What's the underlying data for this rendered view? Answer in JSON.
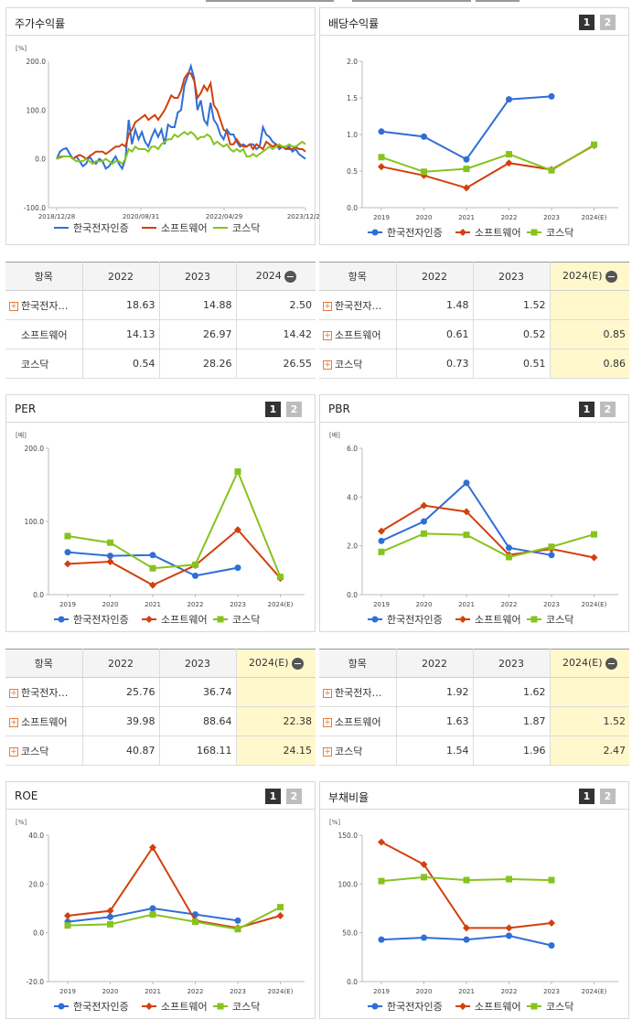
{
  "colors": {
    "company": "#2f6fd6",
    "software": "#d2400e",
    "kosdaq": "#86c31f"
  },
  "legend": [
    "한국전자인증",
    "소프트웨어",
    "코스닥"
  ],
  "panels": {
    "stock": {
      "title": "주가수익률",
      "unit": "[%]"
    },
    "dividend": {
      "title": "배당수익률",
      "btn1": "1",
      "btn2": "2"
    },
    "per": {
      "title": "PER",
      "unit": "[배]",
      "btn1": "1",
      "btn2": "2"
    },
    "pbr": {
      "title": "PBR",
      "unit": "[배]",
      "btn1": "1",
      "btn2": "2"
    },
    "roe": {
      "title": "ROE",
      "unit": "[%]",
      "btn1": "1",
      "btn2": "2"
    },
    "debt": {
      "title": "부채비율",
      "unit": "[%]",
      "btn1": "1",
      "btn2": "2"
    }
  },
  "tables": {
    "dividend_left": {
      "headers": [
        "항목",
        "2022",
        "2023",
        "2024"
      ],
      "rows": [
        {
          "name": "한국전자…",
          "plus": true,
          "v": [
            "18.63",
            "14.88",
            "2.50"
          ]
        },
        {
          "name": "소프트웨어",
          "plus": false,
          "v": [
            "14.13",
            "26.97",
            "14.42"
          ]
        },
        {
          "name": "코스닥",
          "plus": false,
          "v": [
            "0.54",
            "28.26",
            "26.55"
          ]
        }
      ]
    },
    "dividend_right": {
      "headers": [
        "항목",
        "2022",
        "2023",
        "2024(E)"
      ],
      "rows": [
        {
          "name": "한국전자…",
          "plus": true,
          "v": [
            "1.48",
            "1.52",
            ""
          ]
        },
        {
          "name": "소프트웨어",
          "plus": true,
          "v": [
            "0.61",
            "0.52",
            "0.85"
          ]
        },
        {
          "name": "코스닥",
          "plus": true,
          "v": [
            "0.73",
            "0.51",
            "0.86"
          ]
        }
      ]
    },
    "per": {
      "headers": [
        "항목",
        "2022",
        "2023",
        "2024(E)"
      ],
      "rows": [
        {
          "name": "한국전자…",
          "plus": true,
          "v": [
            "25.76",
            "36.74",
            ""
          ]
        },
        {
          "name": "소프트웨어",
          "plus": true,
          "v": [
            "39.98",
            "88.64",
            "22.38"
          ]
        },
        {
          "name": "코스닥",
          "plus": true,
          "v": [
            "40.87",
            "168.11",
            "24.15"
          ]
        }
      ]
    },
    "pbr": {
      "headers": [
        "항목",
        "2022",
        "2023",
        "2024(E)"
      ],
      "rows": [
        {
          "name": "한국전자…",
          "plus": true,
          "v": [
            "1.92",
            "1.62",
            ""
          ]
        },
        {
          "name": "소프트웨어",
          "plus": true,
          "v": [
            "1.63",
            "1.87",
            "1.52"
          ]
        },
        {
          "name": "코스닥",
          "plus": true,
          "v": [
            "1.54",
            "1.96",
            "2.47"
          ]
        }
      ]
    }
  },
  "chart_data": [
    {
      "id": "stock",
      "type": "line",
      "x_ticks": [
        "2018/12/28",
        "2020/08/31",
        "2022/04/29",
        "2023/12/28"
      ],
      "y_ticks": [
        "200.0",
        "100.0",
        "0.0",
        "-100.0"
      ],
      "ylim": [
        -100,
        200
      ],
      "series": [
        {
          "name": "한국전자인증",
          "values": [
            0,
            15,
            20,
            22,
            10,
            0,
            5,
            -5,
            -15,
            -10,
            5,
            -5,
            -10,
            0,
            -5,
            -20,
            -15,
            -5,
            5,
            -10,
            -20,
            0,
            80,
            30,
            60,
            40,
            55,
            35,
            25,
            45,
            60,
            45,
            60,
            30,
            70,
            65,
            65,
            95,
            100,
            150,
            170,
            190,
            165,
            100,
            120,
            80,
            70,
            115,
            80,
            70,
            50,
            40,
            60,
            50,
            50,
            35,
            25,
            30,
            25,
            30,
            30,
            20,
            25,
            65,
            50,
            45,
            35,
            30,
            20,
            25,
            20,
            25,
            15,
            20,
            10,
            5,
            0
          ]
        },
        {
          "name": "소프트웨어",
          "values": [
            0,
            3,
            5,
            5,
            5,
            0,
            5,
            8,
            5,
            0,
            5,
            10,
            15,
            15,
            15,
            10,
            15,
            20,
            25,
            25,
            30,
            25,
            50,
            60,
            75,
            80,
            85,
            90,
            80,
            85,
            90,
            80,
            90,
            100,
            115,
            130,
            125,
            125,
            140,
            165,
            175,
            175,
            160,
            125,
            135,
            150,
            140,
            155,
            110,
            100,
            80,
            60,
            55,
            30,
            30,
            40,
            30,
            25,
            25,
            30,
            20,
            30,
            25,
            20,
            35,
            30,
            25,
            30,
            25,
            25,
            20,
            20,
            20,
            25,
            20,
            20,
            15
          ]
        },
        {
          "name": "코스닥",
          "values": [
            0,
            5,
            5,
            5,
            5,
            0,
            -5,
            -5,
            -5,
            0,
            -5,
            -10,
            -5,
            -5,
            -5,
            0,
            -5,
            -10,
            -5,
            -5,
            -10,
            0,
            20,
            15,
            25,
            20,
            20,
            20,
            15,
            25,
            25,
            20,
            30,
            35,
            40,
            40,
            50,
            45,
            50,
            55,
            50,
            55,
            50,
            40,
            45,
            45,
            50,
            45,
            30,
            35,
            30,
            25,
            30,
            20,
            15,
            20,
            15,
            20,
            5,
            5,
            10,
            5,
            10,
            15,
            20,
            25,
            20,
            25,
            30,
            25,
            25,
            30,
            25,
            25,
            30,
            35,
            30
          ]
        }
      ]
    },
    {
      "id": "dividend",
      "type": "line",
      "categories": [
        "2019",
        "2020",
        "2021",
        "2022",
        "2023",
        "2024(E)"
      ],
      "y_ticks": [
        "2.0",
        "1.5",
        "1.0",
        "0.5",
        "0.0"
      ],
      "ylim": [
        0,
        2
      ],
      "series": [
        {
          "name": "한국전자인증",
          "values": [
            1.04,
            0.97,
            0.66,
            1.48,
            1.52,
            null
          ]
        },
        {
          "name": "소프트웨어",
          "values": [
            0.56,
            0.44,
            0.27,
            0.61,
            0.52,
            0.85
          ]
        },
        {
          "name": "코스닥",
          "values": [
            0.69,
            0.49,
            0.53,
            0.73,
            0.51,
            0.86
          ]
        }
      ]
    },
    {
      "id": "per",
      "type": "line",
      "categories": [
        "2019",
        "2020",
        "2021",
        "2022",
        "2023",
        "2024(E)"
      ],
      "y_ticks": [
        "200.0",
        "100.0",
        "0.0"
      ],
      "ylim": [
        0,
        200
      ],
      "series": [
        {
          "name": "한국전자인증",
          "values": [
            58,
            53,
            54,
            25.76,
            36.74,
            null
          ]
        },
        {
          "name": "소프트웨어",
          "values": [
            42,
            45,
            13,
            39.98,
            88.64,
            22.38
          ]
        },
        {
          "name": "코스닥",
          "values": [
            80,
            71,
            36,
            40.87,
            168.11,
            24.15
          ]
        }
      ]
    },
    {
      "id": "pbr",
      "type": "line",
      "categories": [
        "2019",
        "2020",
        "2021",
        "2022",
        "2023",
        "2024(E)"
      ],
      "y_ticks": [
        "6.0",
        "4.0",
        "2.0",
        "0.0"
      ],
      "ylim": [
        0,
        6
      ],
      "series": [
        {
          "name": "한국전자인증",
          "values": [
            2.2,
            3.0,
            4.58,
            1.92,
            1.62,
            null
          ]
        },
        {
          "name": "소프트웨어",
          "values": [
            2.6,
            3.65,
            3.4,
            1.63,
            1.87,
            1.52
          ]
        },
        {
          "name": "코스닥",
          "values": [
            1.75,
            2.5,
            2.45,
            1.54,
            1.96,
            2.47
          ]
        }
      ]
    },
    {
      "id": "roe",
      "type": "line",
      "categories": [
        "2019",
        "2020",
        "2021",
        "2022",
        "2023",
        "2024(E)"
      ],
      "y_ticks": [
        "40.0",
        "20.0",
        "0.0",
        "-20.0"
      ],
      "ylim": [
        -20,
        40
      ],
      "series": [
        {
          "name": "한국전자인증",
          "values": [
            4.5,
            6.5,
            10,
            7.5,
            5,
            null
          ]
        },
        {
          "name": "소프트웨어",
          "values": [
            7,
            9,
            35,
            5,
            2,
            7
          ]
        },
        {
          "name": "코스닥",
          "values": [
            3,
            3.5,
            7.5,
            4.5,
            1.5,
            10.5
          ]
        }
      ]
    },
    {
      "id": "debt",
      "type": "line",
      "categories": [
        "2019",
        "2020",
        "2021",
        "2022",
        "2023",
        "2024(E)"
      ],
      "y_ticks": [
        "150.0",
        "100.0",
        "50.0",
        "0.0"
      ],
      "ylim": [
        0,
        150
      ],
      "series": [
        {
          "name": "한국전자인증",
          "values": [
            43,
            45,
            43,
            47,
            37,
            null
          ]
        },
        {
          "name": "소프트웨어",
          "values": [
            143,
            120,
            55,
            55,
            60,
            null
          ]
        },
        {
          "name": "코스닥",
          "values": [
            103,
            107,
            104,
            105,
            104,
            null
          ]
        }
      ]
    }
  ]
}
